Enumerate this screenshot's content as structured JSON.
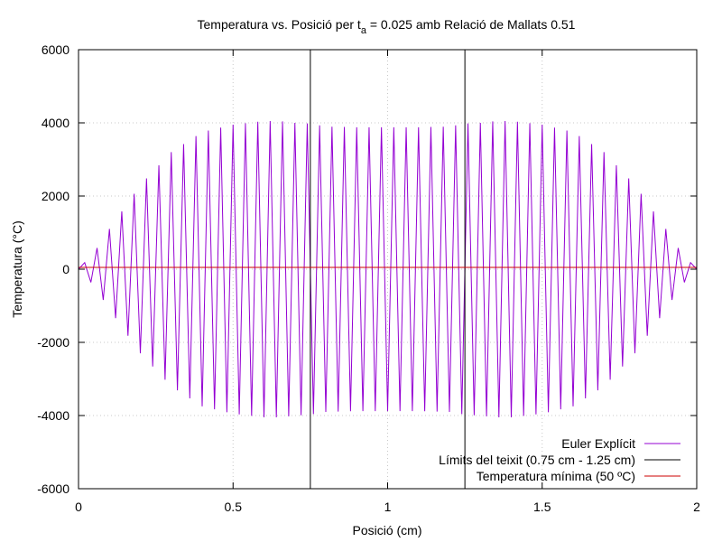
{
  "chart_data": {
    "type": "line",
    "title": {
      "prefix": "Temperatura vs. Posició per t",
      "subscript": "a",
      "suffix": " = 0.025 amb Relació de Mallats 0.51"
    },
    "xlabel": "Posició (cm)",
    "ylabel": "Temperatura (°C)",
    "xlim": [
      0,
      2
    ],
    "ylim": [
      -6000,
      6000
    ],
    "xticks": [
      0,
      0.5,
      1,
      1.5,
      2
    ],
    "xtick_labels": [
      "0",
      "0.5",
      "1",
      "1.5",
      "2"
    ],
    "yticks": [
      -6000,
      -4000,
      -2000,
      0,
      2000,
      4000,
      6000
    ],
    "ytick_labels": [
      "-6000",
      "-4000",
      "-2000",
      "0",
      "2000",
      "4000",
      "6000"
    ],
    "grid": true,
    "legend_position": "bottom-right",
    "series": [
      {
        "name": "Euler Explícit",
        "color": "#9400d3",
        "kind": "oscillation",
        "x_start": 0,
        "x_end": 2,
        "points": 101,
        "envelope_x": [
          0,
          0.02,
          0.05,
          0.1,
          0.2,
          0.3,
          0.4,
          0.5,
          0.6,
          0.65,
          0.7,
          0.75,
          0.8,
          0.9,
          1.0,
          1.1,
          1.2,
          1.25,
          1.3,
          1.35,
          1.4,
          1.5,
          1.6,
          1.7,
          1.8,
          1.9,
          1.95,
          1.98,
          2
        ],
        "envelope_y": [
          0,
          180,
          450,
          1100,
          2300,
          3200,
          3750,
          3950,
          4050,
          4050,
          4000,
          3980,
          3900,
          3880,
          3880,
          3880,
          3900,
          3980,
          4000,
          4050,
          4050,
          3950,
          3750,
          3200,
          2300,
          1100,
          450,
          180,
          0
        ]
      },
      {
        "name": "Límits del teixit (0.75 cm - 1.25 cm)",
        "color": "#000000",
        "kind": "vlines",
        "x": [
          0.75,
          1.25
        ]
      },
      {
        "name": "Temperatura mínima (50 ºC)",
        "color": "#cc0000",
        "kind": "hline",
        "y": 50
      }
    ]
  }
}
